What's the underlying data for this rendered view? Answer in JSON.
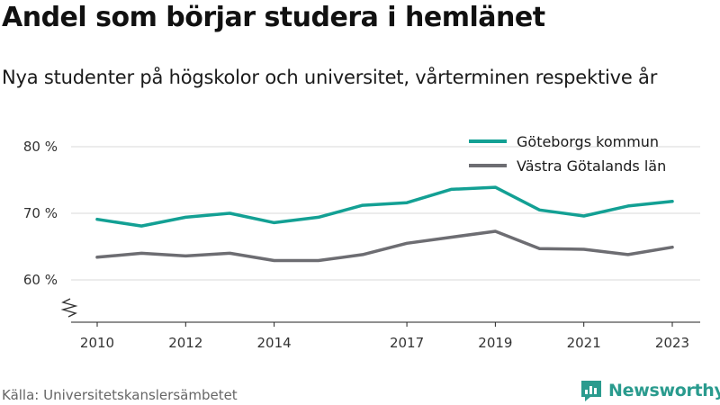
{
  "header": {
    "title": "Andel som börjar studera i hemlänet",
    "subtitle": "Nya studenter på högskolor och universitet, vårterminen respektive år"
  },
  "footer": {
    "source": "Källa: Universitetskanslersämbetet",
    "brand": "Newsworthy",
    "brand_icon": "newsworthy-logo-icon",
    "brand_color": "#2a9b8e"
  },
  "chart_data": {
    "type": "line",
    "title": "Andel som börjar studera i hemlänet",
    "subtitle": "Nya studenter på högskolor och universitet, vårterminen respektive år",
    "x": [
      2010,
      2011,
      2012,
      2013,
      2014,
      2015,
      2016,
      2017,
      2018,
      2019,
      2020,
      2021,
      2022,
      2023
    ],
    "x_ticks": [
      2010,
      2012,
      2014,
      2017,
      2019,
      2021,
      2023
    ],
    "y_ticks": [
      60,
      70,
      80
    ],
    "y_tick_labels": [
      "60 %",
      "70 %",
      "80 %"
    ],
    "ylim": [
      54,
      82
    ],
    "y_axis_break": true,
    "grid": true,
    "legend_position": "top-right",
    "series": [
      {
        "name": "Göteborgs kommun",
        "color": "#13a094",
        "values": [
          69.1,
          68.1,
          69.4,
          70.0,
          68.6,
          69.4,
          71.2,
          71.6,
          73.6,
          73.9,
          70.5,
          69.6,
          71.1,
          71.8
        ]
      },
      {
        "name": "Västra Götalands län",
        "color": "#6d6d72",
        "values": [
          63.4,
          64.0,
          63.6,
          64.0,
          62.9,
          62.9,
          63.8,
          65.5,
          66.4,
          67.3,
          64.7,
          64.6,
          63.8,
          64.9
        ]
      }
    ]
  }
}
